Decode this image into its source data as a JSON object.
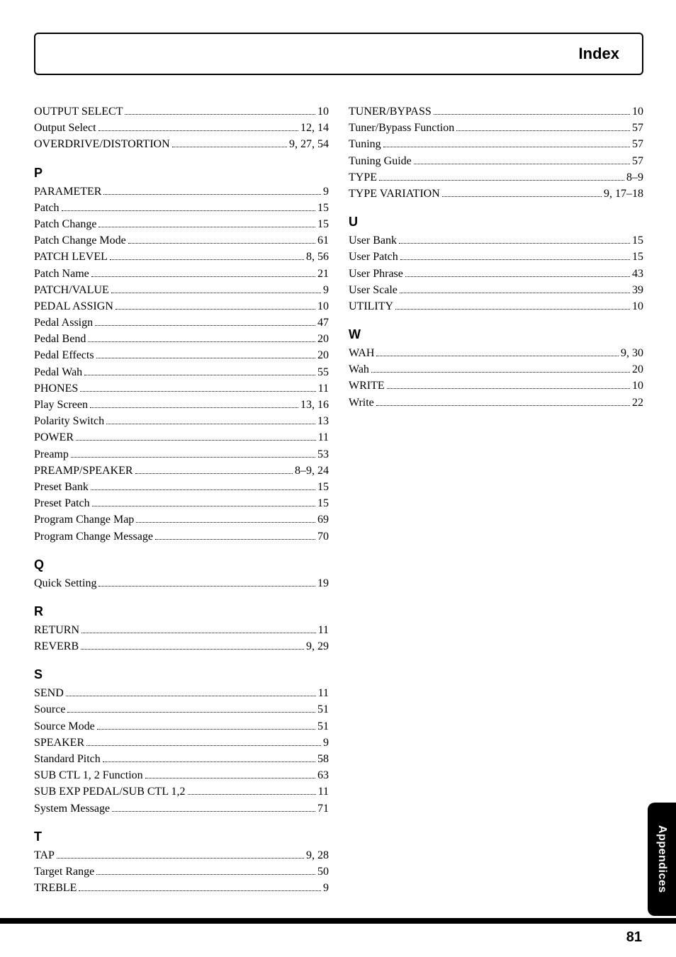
{
  "header": {
    "title": "Index"
  },
  "tab": {
    "label": "Appendices"
  },
  "footer": {
    "page_number": "81"
  },
  "left_column": {
    "pre": [
      {
        "term": "OUTPUT SELECT",
        "page": "10"
      },
      {
        "term": "Output Select",
        "page": "12, 14"
      },
      {
        "term": "OVERDRIVE/DISTORTION",
        "page": "9, 27, 54"
      }
    ],
    "sections": [
      {
        "letter": "P",
        "entries": [
          {
            "term": "PARAMETER",
            "page": "9"
          },
          {
            "term": "Patch",
            "page": "15"
          },
          {
            "term": "Patch Change",
            "page": "15"
          },
          {
            "term": "Patch Change Mode",
            "page": "61"
          },
          {
            "term": "PATCH LEVEL",
            "page": "8, 56"
          },
          {
            "term": "Patch Name",
            "page": "21"
          },
          {
            "term": "PATCH/VALUE",
            "page": "9"
          },
          {
            "term": "PEDAL ASSIGN",
            "page": "10"
          },
          {
            "term": "Pedal Assign",
            "page": "47"
          },
          {
            "term": "Pedal Bend",
            "page": "20"
          },
          {
            "term": "Pedal Effects",
            "page": "20"
          },
          {
            "term": "Pedal Wah",
            "page": "55"
          },
          {
            "term": "PHONES",
            "page": "11"
          },
          {
            "term": "Play Screen",
            "page": "13, 16"
          },
          {
            "term": "Polarity Switch",
            "page": "13"
          },
          {
            "term": "POWER",
            "page": "11"
          },
          {
            "term": "Preamp",
            "page": "53"
          },
          {
            "term": "PREAMP/SPEAKER",
            "page": "8–9, 24"
          },
          {
            "term": "Preset Bank",
            "page": "15"
          },
          {
            "term": "Preset Patch",
            "page": "15"
          },
          {
            "term": "Program Change Map",
            "page": "69"
          },
          {
            "term": "Program Change Message",
            "page": "70"
          }
        ]
      },
      {
        "letter": "Q",
        "entries": [
          {
            "term": "Quick Setting",
            "page": "19"
          }
        ]
      },
      {
        "letter": "R",
        "entries": [
          {
            "term": "RETURN",
            "page": "11"
          },
          {
            "term": "REVERB",
            "page": "9, 29"
          }
        ]
      },
      {
        "letter": "S",
        "entries": [
          {
            "term": "SEND",
            "page": "11"
          },
          {
            "term": "Source",
            "page": "51"
          },
          {
            "term": "Source Mode",
            "page": "51"
          },
          {
            "term": "SPEAKER",
            "page": "9"
          },
          {
            "term": "Standard Pitch",
            "page": "58"
          },
          {
            "term": "SUB CTL 1, 2 Function",
            "page": "63"
          },
          {
            "term": "SUB EXP PEDAL/SUB CTL 1,2",
            "page": "11"
          },
          {
            "term": "System Message",
            "page": "71"
          }
        ]
      },
      {
        "letter": "T",
        "entries": [
          {
            "term": "TAP",
            "page": "9, 28"
          },
          {
            "term": "Target Range",
            "page": "50"
          },
          {
            "term": "TREBLE",
            "page": "9"
          }
        ]
      }
    ]
  },
  "right_column": {
    "pre": [
      {
        "term": "TUNER/BYPASS",
        "page": "10"
      },
      {
        "term": "Tuner/Bypass Function",
        "page": "57"
      },
      {
        "term": "Tuning",
        "page": "57"
      },
      {
        "term": "Tuning Guide",
        "page": "57"
      },
      {
        "term": "TYPE",
        "page": "8–9"
      },
      {
        "term": "TYPE VARIATION",
        "page": "9, 17–18"
      }
    ],
    "sections": [
      {
        "letter": "U",
        "entries": [
          {
            "term": "User Bank",
            "page": "15"
          },
          {
            "term": "User Patch",
            "page": "15"
          },
          {
            "term": "User Phrase",
            "page": "43"
          },
          {
            "term": "User Scale",
            "page": "39"
          },
          {
            "term": "UTILITY",
            "page": "10"
          }
        ]
      },
      {
        "letter": "W",
        "entries": [
          {
            "term": "WAH",
            "page": "9, 30"
          },
          {
            "term": "Wah",
            "page": "20"
          },
          {
            "term": "WRITE",
            "page": "10"
          },
          {
            "term": "Write",
            "page": "22"
          }
        ]
      }
    ]
  }
}
